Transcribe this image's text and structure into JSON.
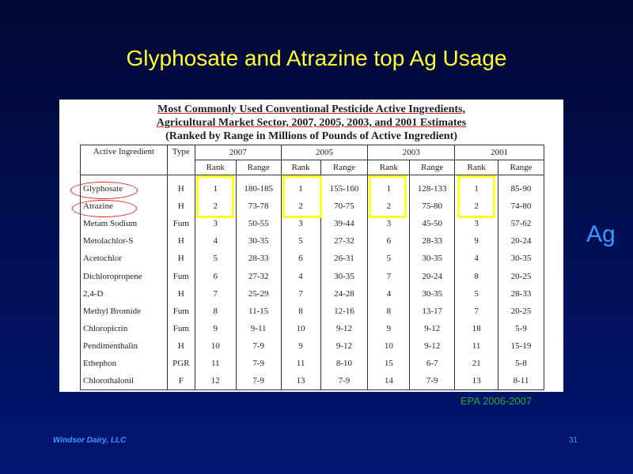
{
  "slide": {
    "title": "Glyphosate and Atrazine top Ag Usage",
    "source": "EPA 2006-2007",
    "side_label": "Ag",
    "footer_company": "Windsor Dairy, LLC",
    "page_number": "31"
  },
  "table": {
    "heading_line1": "Most Commonly Used Conventional Pesticide Active Ingredients,",
    "heading_line2": "Agricultural Market Sector, 2007, 2005, 2003, and 2001 Estimates",
    "heading_line3": "(Ranked by Range in Millions of Pounds of Active Ingredient)",
    "col_ingredient": "Active Ingredient",
    "col_type": "Type",
    "years": [
      "2007",
      "2005",
      "2003",
      "2001"
    ],
    "sub_rank": "Rank",
    "sub_range": "Range",
    "rows": [
      [
        "Glyphosate",
        "H",
        "1",
        "180-185",
        "1",
        "155-160",
        "1",
        "128-133",
        "1",
        "85-90"
      ],
      [
        "Atrazine",
        "H",
        "2",
        "73-78",
        "2",
        "70-75",
        "2",
        "75-80",
        "2",
        "74-80"
      ],
      [
        "Metam Sodium",
        "Fum",
        "3",
        "50-55",
        "3",
        "39-44",
        "3",
        "45-50",
        "3",
        "57-62"
      ],
      [
        "Metolachlor-S",
        "H",
        "4",
        "30-35",
        "5",
        "27-32",
        "6",
        "28-33",
        "9",
        "20-24"
      ],
      [
        "Acetochlor",
        "H",
        "5",
        "28-33",
        "6",
        "26-31",
        "5",
        "30-35",
        "4",
        "30-35"
      ],
      [
        "Dichloropropene",
        "Fum",
        "6",
        "27-32",
        "4",
        "30-35",
        "7",
        "20-24",
        "8",
        "20-25"
      ],
      [
        "2,4-D",
        "H",
        "7",
        "25-29",
        "7",
        "24-28",
        "4",
        "30-35",
        "5",
        "28-33"
      ],
      [
        "Methyl Bromide",
        "Fum",
        "8",
        "11-15",
        "8",
        "12-16",
        "8",
        "13-17",
        "7",
        "20-25"
      ],
      [
        "Chloropicrin",
        "Fum",
        "9",
        "9-11",
        "10",
        "9-12",
        "9",
        "9-12",
        "18",
        "5-9"
      ],
      [
        "Pendimenthalin",
        "H",
        "10",
        "7-9",
        "9",
        "9-12",
        "10",
        "9-12",
        "11",
        "15-19"
      ],
      [
        "Ethephon",
        "PGR",
        "11",
        "7-9",
        "11",
        "8-10",
        "15",
        "6-7",
        "21",
        "5-8"
      ],
      [
        "Chlorothalonil",
        "F",
        "12",
        "7-9",
        "13",
        "7-9",
        "14",
        "7-9",
        "13",
        "8-11"
      ]
    ]
  },
  "colors": {
    "title": "#ffff33",
    "highlight": "#ffff22",
    "circle": "#dd2222",
    "source": "#22aa33",
    "footer": "#3399ff"
  }
}
